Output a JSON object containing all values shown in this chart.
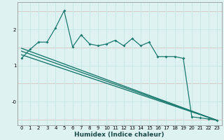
{
  "xlabel": "Humidex (Indice chaleur)",
  "ylabel": "",
  "bg_color": "#dff2f2",
  "line_color": "#1a7a6e",
  "grid_color": "#c8e8e8",
  "yticks": [
    0,
    1,
    2
  ],
  "ytick_labels": [
    "-0",
    "1",
    "2"
  ],
  "ylim": [
    -0.65,
    2.75
  ],
  "xlim": [
    -0.5,
    23.5
  ],
  "xticks": [
    0,
    1,
    2,
    3,
    4,
    5,
    6,
    7,
    8,
    9,
    10,
    11,
    12,
    13,
    14,
    15,
    16,
    17,
    18,
    19,
    20,
    21,
    22,
    23
  ],
  "jagged_x": [
    0,
    1,
    2,
    3,
    4,
    5,
    6,
    7,
    8,
    9,
    10,
    11,
    12,
    13,
    14,
    15,
    16,
    17,
    18,
    19,
    20,
    21,
    22,
    23
  ],
  "jagged_y": [
    1.2,
    1.45,
    1.65,
    1.65,
    2.05,
    2.52,
    1.52,
    1.85,
    1.6,
    1.55,
    1.6,
    1.7,
    1.55,
    1.75,
    1.55,
    1.65,
    1.25,
    1.25,
    1.25,
    1.2,
    -0.42,
    -0.45,
    -0.48,
    -0.52
  ],
  "line1_x": [
    0,
    23
  ],
  "line1_y": [
    1.3,
    -0.52
  ],
  "line2_x": [
    0,
    23
  ],
  "line2_y": [
    1.4,
    -0.52
  ],
  "line3_x": [
    0,
    23
  ],
  "line3_y": [
    1.48,
    -0.52
  ]
}
